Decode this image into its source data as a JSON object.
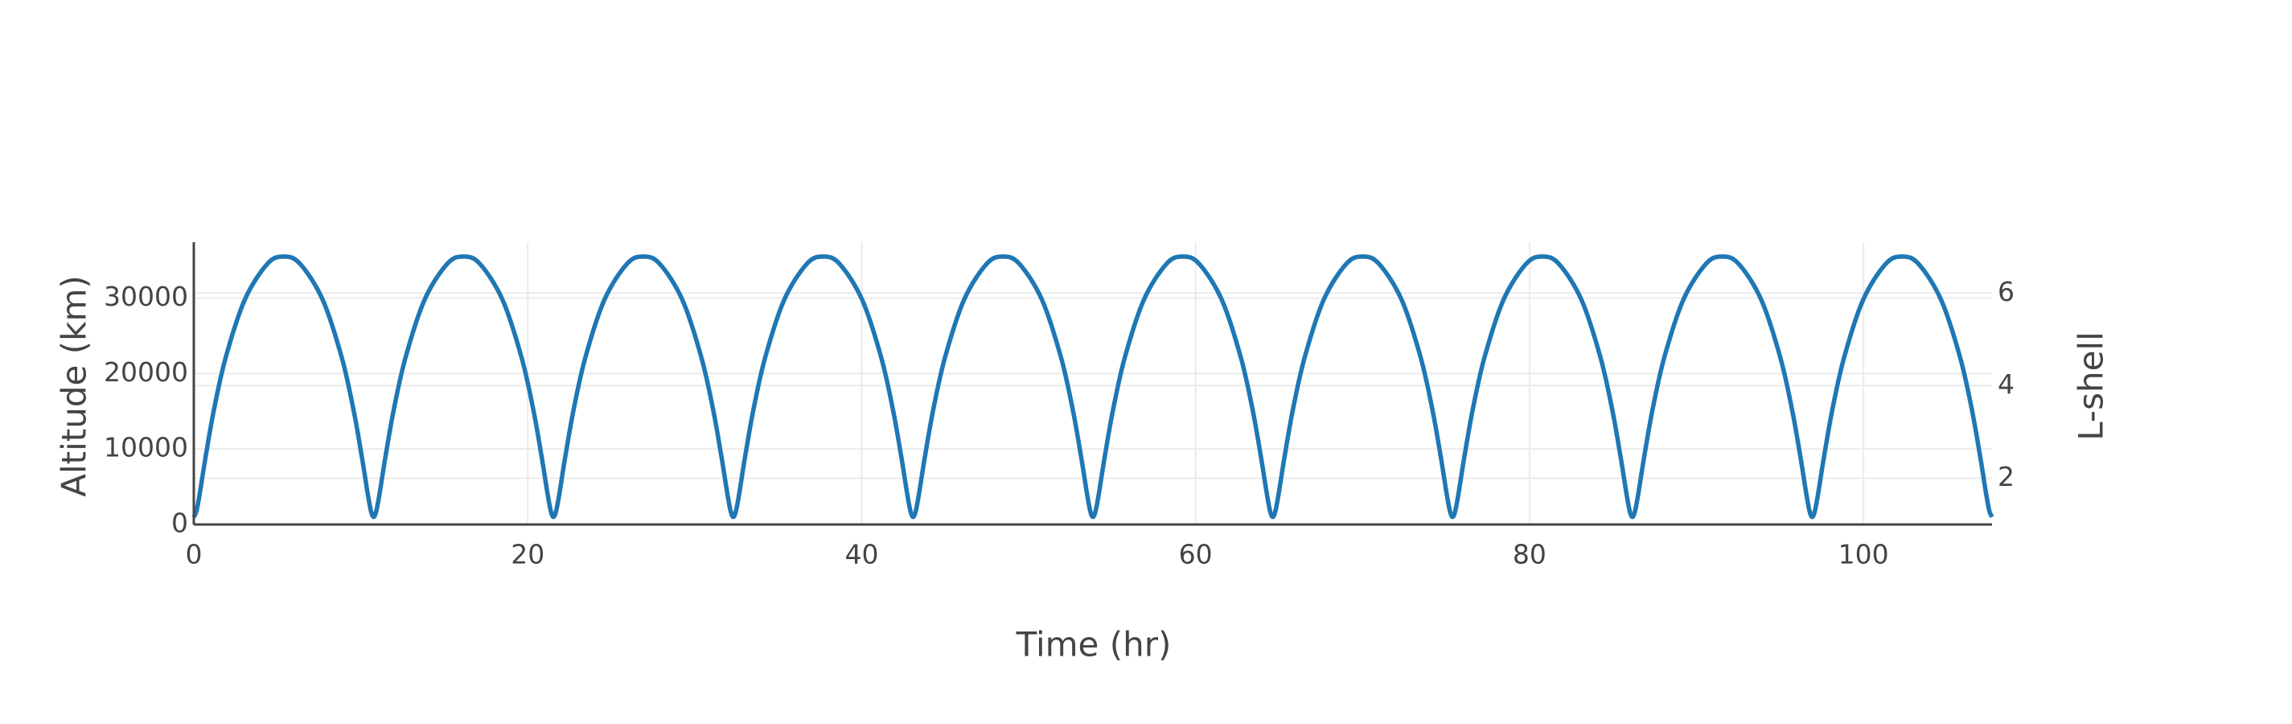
{
  "chart_data": {
    "type": "line",
    "xlabel": "Time (hr)",
    "ylabel": "Altitude (km)",
    "y2label": "L-shell",
    "xlim": [
      0,
      107.7
    ],
    "xticks": [
      0,
      20,
      40,
      60,
      80,
      100
    ],
    "ylim": [
      0,
      37400
    ],
    "yticks": [
      0,
      10000,
      20000,
      30000
    ],
    "y2lim": [
      1,
      7.1
    ],
    "y2ticks": [
      2,
      4,
      6
    ],
    "grid": true,
    "x": [
      0,
      0.159,
      0.35,
      0.704,
      1.216,
      1.916,
      3.047,
      4.397,
      5.385,
      6.373,
      7.723,
      8.854,
      9.554,
      10.066,
      10.42,
      10.611,
      10.77,
      10.929,
      11.12,
      11.474,
      11.986,
      12.686,
      13.817,
      15.167,
      16.155,
      17.143,
      18.493,
      19.624,
      20.324,
      20.836,
      21.19,
      21.381,
      21.54,
      21.699,
      21.89,
      22.244,
      22.756,
      23.456,
      24.587,
      25.937,
      26.925,
      27.913,
      29.263,
      30.394,
      31.094,
      31.606,
      31.96,
      32.151,
      32.31,
      32.469,
      32.66,
      33.014,
      33.526,
      34.226,
      35.357,
      36.707,
      37.695,
      38.683,
      40.033,
      41.164,
      41.864,
      42.376,
      42.73,
      42.921,
      43.08,
      43.239,
      43.43,
      43.784,
      44.296,
      44.996,
      46.127,
      47.477,
      48.465,
      49.453,
      50.803,
      51.934,
      52.634,
      53.146,
      53.5,
      53.691,
      53.85,
      54.009,
      54.2,
      54.554,
      55.066,
      55.766,
      56.897,
      58.247,
      59.235,
      60.223,
      61.573,
      62.704,
      63.404,
      63.916,
      64.27,
      64.461,
      64.62,
      64.779,
      64.97,
      65.324,
      65.836,
      66.536,
      67.667,
      69.017,
      70.005,
      70.993,
      72.343,
      73.474,
      74.174,
      74.686,
      75.04,
      75.231,
      75.39,
      75.549,
      75.74,
      76.094,
      76.606,
      77.306,
      78.437,
      79.787,
      80.775,
      81.763,
      83.113,
      84.244,
      84.944,
      85.456,
      85.81,
      86.001,
      86.16,
      86.319,
      86.51,
      86.864,
      87.376,
      88.076,
      89.207,
      90.557,
      91.545,
      92.533,
      93.883,
      95.014,
      95.714,
      96.226,
      96.58,
      96.771,
      96.93,
      97.089,
      97.28,
      97.634,
      98.146,
      98.846,
      99.977,
      101.327,
      102.315,
      103.303,
      104.653,
      105.784,
      106.484,
      106.996,
      107.35,
      107.541,
      107.7
    ],
    "series": [
      {
        "color": "#1f77b4",
        "values": [
          1000,
          1772,
          4014,
          8930,
          15318,
          22169,
          29743,
          34502,
          35500,
          34502,
          29743,
          22169,
          15318,
          8930,
          4014,
          1772,
          1000,
          1772,
          4014,
          8930,
          15318,
          22169,
          29743,
          34502,
          35500,
          34502,
          29743,
          22169,
          15318,
          8930,
          4014,
          1772,
          1000,
          1772,
          4014,
          8930,
          15318,
          22169,
          29743,
          34502,
          35500,
          34502,
          29743,
          22169,
          15318,
          8930,
          4014,
          1772,
          1000,
          1772,
          4014,
          8930,
          15318,
          22169,
          29743,
          34502,
          35500,
          34502,
          29743,
          22169,
          15318,
          8930,
          4014,
          1772,
          1000,
          1772,
          4014,
          8930,
          15318,
          22169,
          29743,
          34502,
          35500,
          34502,
          29743,
          22169,
          15318,
          8930,
          4014,
          1772,
          1000,
          1772,
          4014,
          8930,
          15318,
          22169,
          29743,
          34502,
          35500,
          34502,
          29743,
          22169,
          15318,
          8930,
          4014,
          1772,
          1000,
          1772,
          4014,
          8930,
          15318,
          22169,
          29743,
          34502,
          35500,
          34502,
          29743,
          22169,
          15318,
          8930,
          4014,
          1772,
          1000,
          1772,
          4014,
          8930,
          15318,
          22169,
          29743,
          34502,
          35500,
          34502,
          29743,
          22169,
          15318,
          8930,
          4014,
          1772,
          1000,
          1772,
          4014,
          8930,
          15318,
          22169,
          29743,
          34502,
          35500,
          34502,
          29743,
          22169,
          15318,
          8930,
          4014,
          1772,
          1000,
          1772,
          4014,
          8930,
          15318,
          22169,
          29743,
          34502,
          35500,
          34502,
          29743,
          22169,
          15318,
          8930,
          4014,
          1772,
          1000
        ]
      }
    ]
  }
}
